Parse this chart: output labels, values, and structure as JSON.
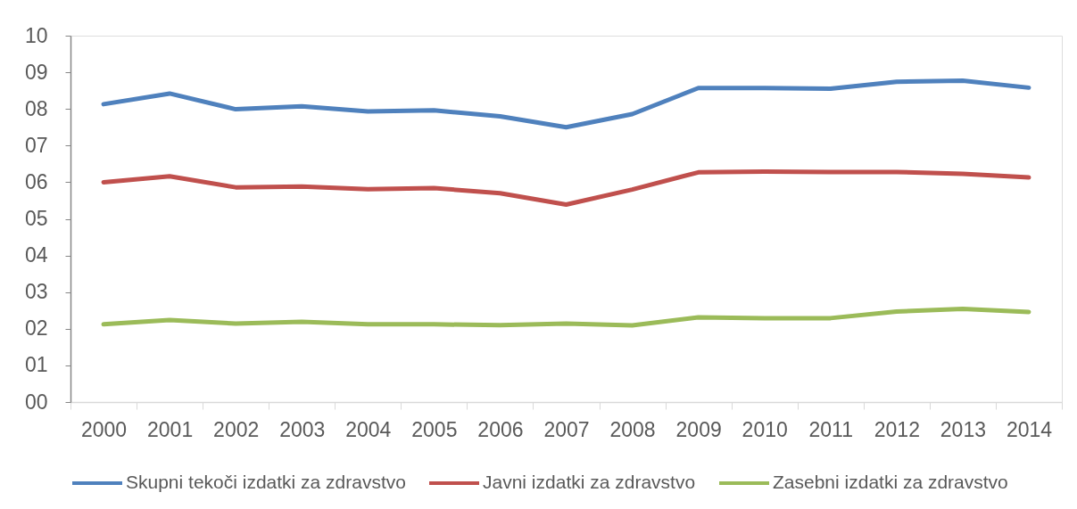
{
  "chart_data": {
    "type": "line",
    "categories": [
      "2000",
      "2001",
      "2002",
      "2003",
      "2004",
      "2005",
      "2006",
      "2007",
      "2008",
      "2009",
      "2010",
      "2011",
      "2012",
      "2013",
      "2014"
    ],
    "series": [
      {
        "name": "Skupni tekoči izdatki za zdravstvo",
        "color": "#4f81bd",
        "values": [
          8.13,
          8.42,
          7.99,
          8.07,
          7.93,
          7.96,
          7.8,
          7.5,
          7.86,
          8.57,
          8.57,
          8.55,
          8.74,
          8.77,
          8.58
        ]
      },
      {
        "name": "Javni izdatki za zdravstvo",
        "color": "#c0504d",
        "values": [
          6.0,
          6.16,
          5.86,
          5.88,
          5.81,
          5.84,
          5.7,
          5.39,
          5.8,
          6.27,
          6.29,
          6.28,
          6.28,
          6.23,
          6.13
        ]
      },
      {
        "name": "Zasebni izdatki za zdravstvo",
        "color": "#9bbb59",
        "values": [
          2.12,
          2.24,
          2.14,
          2.19,
          2.12,
          2.12,
          2.1,
          2.14,
          2.09,
          2.31,
          2.29,
          2.29,
          2.47,
          2.54,
          2.46
        ]
      }
    ],
    "ylim": [
      0,
      10
    ],
    "yticks": [
      {
        "value": 0,
        "label": "00"
      },
      {
        "value": 1,
        "label": "01"
      },
      {
        "value": 2,
        "label": "02"
      },
      {
        "value": 3,
        "label": "03"
      },
      {
        "value": 4,
        "label": "04"
      },
      {
        "value": 5,
        "label": "05"
      },
      {
        "value": 6,
        "label": "06"
      },
      {
        "value": 7,
        "label": "07"
      },
      {
        "value": 8,
        "label": "08"
      },
      {
        "value": 9,
        "label": "09"
      },
      10
    ],
    "grid": false,
    "legend": "bottom",
    "line_style": "solid"
  }
}
